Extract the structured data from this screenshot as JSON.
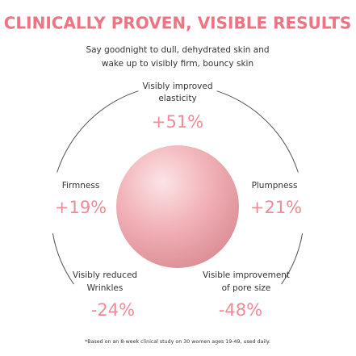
{
  "header": {
    "title": "CLINICALLY PROVEN, VISIBLE RESULTS",
    "subtitle": [
      "Say goodnight to dull, dehydrated skin and",
      "wake up to visibly firm, bouncy skin"
    ]
  },
  "results": [
    {
      "label": [
        "Visibly improved",
        "elasticity"
      ],
      "value": "+51%"
    },
    {
      "label": [
        "Firmness"
      ],
      "value": "+19%"
    },
    {
      "label": [
        "Plumpness"
      ],
      "value": "+21%"
    },
    {
      "label": [
        "Visibly reduced",
        "Wrinkles"
      ],
      "value": "-24%"
    },
    {
      "label": [
        "Visible improvement",
        "of pore size"
      ],
      "value": "-48%"
    }
  ],
  "footnote": "*Based on an 8-week clinical study on 30 women ages 19-49, used daily."
}
